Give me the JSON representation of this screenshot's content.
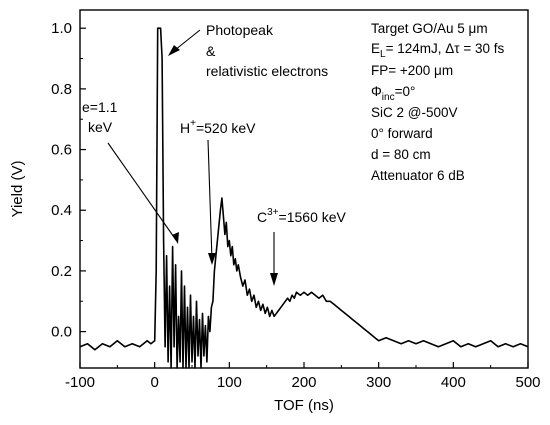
{
  "chart_data": {
    "type": "line",
    "title": "",
    "xlabel": "TOF (ns)",
    "ylabel": "Yield (V)",
    "xlim": [
      -100,
      500
    ],
    "ylim": [
      -0.12,
      1.06
    ],
    "x_ticks": [
      -100,
      0,
      100,
      200,
      300,
      400,
      500
    ],
    "x_tick_labels": [
      "-100",
      "0",
      "100",
      "200",
      "300",
      "400",
      "500"
    ],
    "y_ticks": [
      0.0,
      0.2,
      0.4,
      0.6,
      0.8,
      1.0
    ],
    "y_tick_labels": [
      "0.0",
      "0.2",
      "0.4",
      "0.6",
      "0.8",
      "1.0"
    ],
    "grid": false,
    "series": [
      {
        "color": "#000000",
        "x": [
          -100,
          -90,
          -80,
          -70,
          -60,
          -50,
          -40,
          -30,
          -20,
          -10,
          -5,
          0,
          2,
          4,
          5,
          8,
          10,
          12,
          14,
          16,
          18,
          20,
          22,
          24,
          26,
          28,
          30,
          32,
          34,
          36,
          38,
          40,
          42,
          44,
          46,
          48,
          50,
          52,
          54,
          56,
          58,
          60,
          62,
          64,
          66,
          68,
          70,
          72,
          74,
          76,
          78,
          80,
          82,
          84,
          86,
          88,
          90,
          92,
          94,
          96,
          98,
          100,
          102,
          104,
          106,
          108,
          110,
          112,
          115,
          118,
          121,
          124,
          127,
          130,
          133,
          136,
          139,
          142,
          145,
          148,
          151,
          154,
          157,
          160,
          163,
          166,
          169,
          172,
          175,
          178,
          181,
          184,
          187,
          190,
          195,
          200,
          205,
          210,
          215,
          220,
          225,
          230,
          235,
          240,
          245,
          250,
          255,
          260,
          265,
          270,
          275,
          280,
          285,
          290,
          295,
          300,
          310,
          320,
          330,
          340,
          350,
          360,
          370,
          380,
          390,
          400,
          410,
          420,
          430,
          440,
          450,
          460,
          470,
          480,
          490,
          500
        ],
        "y": [
          -0.05,
          -0.04,
          -0.06,
          -0.04,
          -0.05,
          -0.03,
          -0.05,
          -0.04,
          -0.05,
          -0.03,
          -0.04,
          -0.03,
          0.2,
          1.0,
          1.0,
          1.0,
          0.9,
          0.3,
          -0.05,
          0.25,
          -0.1,
          0.15,
          -0.12,
          0.28,
          -0.05,
          0.22,
          -0.12,
          0.05,
          -0.1,
          0.2,
          -0.12,
          0.15,
          -0.12,
          0.08,
          -0.12,
          0.12,
          -0.1,
          0.05,
          -0.12,
          0.1,
          -0.08,
          0.04,
          -0.12,
          0.06,
          -0.08,
          0.02,
          -0.1,
          0.05,
          0.0,
          0.08,
          0.1,
          0.2,
          0.25,
          0.3,
          0.35,
          0.4,
          0.44,
          0.38,
          0.32,
          0.36,
          0.28,
          0.3,
          0.25,
          0.28,
          0.22,
          0.24,
          0.2,
          0.22,
          0.18,
          0.15,
          0.17,
          0.12,
          0.14,
          0.1,
          0.12,
          0.08,
          0.1,
          0.07,
          0.09,
          0.06,
          0.08,
          0.05,
          0.07,
          0.05,
          0.06,
          0.07,
          0.08,
          0.09,
          0.1,
          0.11,
          0.1,
          0.12,
          0.11,
          0.13,
          0.12,
          0.13,
          0.12,
          0.13,
          0.12,
          0.11,
          0.12,
          0.1,
          0.1,
          0.09,
          0.08,
          0.07,
          0.06,
          0.05,
          0.04,
          0.03,
          0.02,
          0.01,
          0.0,
          -0.01,
          -0.02,
          -0.03,
          -0.02,
          -0.03,
          -0.04,
          -0.03,
          -0.04,
          -0.03,
          -0.04,
          -0.05,
          -0.04,
          -0.03,
          -0.05,
          -0.04,
          -0.05,
          -0.04,
          -0.03,
          -0.05,
          -0.04,
          -0.05,
          -0.04,
          -0.05
        ]
      }
    ],
    "annotations": [
      {
        "text": "Photopeak"
      },
      {
        "text": "&"
      },
      {
        "text": "relativistic electrons"
      },
      {
        "text": "e=1.1"
      },
      {
        "text": "keV"
      },
      {
        "text": "H",
        "sup": "+",
        "rest": "=520 keV"
      },
      {
        "text": "C",
        "sup": "3+",
        "rest": "=1560 keV"
      }
    ],
    "info_box": {
      "line1": "Target GO/Au 5 μm",
      "line2_main": "E",
      "line2_sub": "L",
      "line2_rest": "= 124mJ, Δτ = 30 fs",
      "line3": "FP= +200 μm",
      "line4_main": "Φ",
      "line4_sub": "inc",
      "line4_rest": "=0°",
      "line5": "SiC 2 @-500V",
      "line6": "0° forward",
      "line7": "d = 80 cm",
      "line8": "Attenuator 6 dB"
    }
  }
}
